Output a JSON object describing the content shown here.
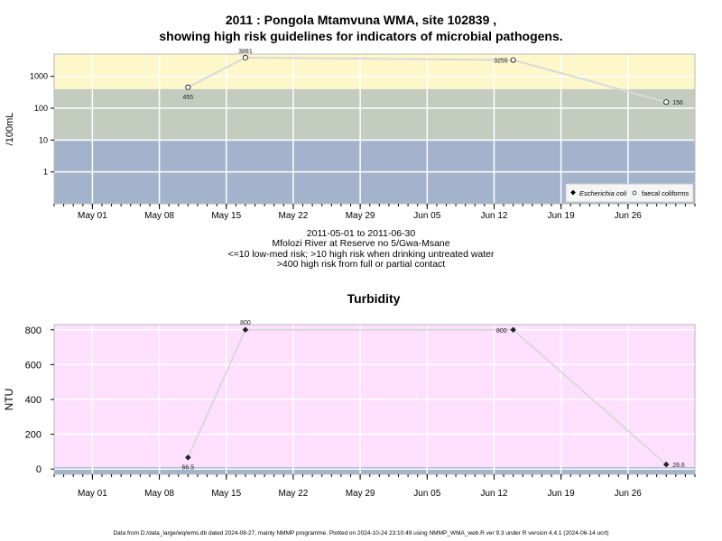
{
  "header": {
    "title_line1": "2011 : Pongola Mtamvuna WMA, site 102839 ,",
    "title_line2": "showing high risk guidelines for indicators of microbial pathogens."
  },
  "subtitle": {
    "line1": "2011-05-01 to 2011-06-30",
    "line2": "Mfolozi River at Reserve no 5/Gwa-Msane",
    "line3": "<=10 low-med risk; >10 high risk when drinking untreated water",
    "line4": ">400 high risk from full or partial contact"
  },
  "footer": {
    "text": "Data from D:/data_large/wq/wms.db dated 2024-08-27, mainly NMMP programme. Plotted on 2024-10-24 23:10:49 using NMMP_WMA_web.R ver 9.3 under R version 4.4.1 (2024-06-14 ucrt)"
  },
  "colors": {
    "band_low": "#a3b3cc",
    "band_med": "#c4ccc0",
    "band_high": "#fdf7ca",
    "turbidity_bg": "#fee0fe",
    "turbidity_base": "#a3b3cc",
    "line": "#d9d9d9",
    "grid": "#ffffff"
  },
  "chart_data": [
    {
      "type": "scatter",
      "title": "",
      "ylabel": "/100mL",
      "y_scale": "log10",
      "ylim": [
        0.1,
        5000
      ],
      "xlim": [
        "2011-04-27",
        "2011-07-03"
      ],
      "y_ticks": [
        1,
        10,
        100,
        1000
      ],
      "y_tick_labels": [
        "1",
        "10",
        "100",
        "1000"
      ],
      "x_ticks": [
        "2011-05-01",
        "2011-05-08",
        "2011-05-15",
        "2011-05-22",
        "2011-05-29",
        "2011-06-05",
        "2011-06-12",
        "2011-06-19",
        "2011-06-26"
      ],
      "x_tick_labels": [
        "May 01",
        "May 08",
        "May 15",
        "May 22",
        "May 29",
        "Jun 05",
        "Jun 12",
        "Jun 19",
        "Jun 26"
      ],
      "risk_bands": [
        {
          "from": 0.1,
          "to": 10,
          "level": "low-med"
        },
        {
          "from": 10,
          "to": 400,
          "level": "high"
        },
        {
          "from": 400,
          "to": 5000,
          "level": "high contact"
        }
      ],
      "grid": true,
      "legend_position": "bottom-right",
      "legend": [
        "Escherichia coli",
        "faecal coliforms"
      ],
      "series": [
        {
          "name": "faecal coliforms",
          "marker": "open-circle",
          "x": [
            "2011-05-11",
            "2011-05-17",
            "2011-06-14",
            "2011-06-30"
          ],
          "y": [
            455,
            3881,
            3255,
            156
          ],
          "labels": [
            "455",
            "3881",
            "3255",
            "156"
          ]
        }
      ]
    },
    {
      "type": "scatter",
      "title": "Turbidity",
      "ylabel": "NTU",
      "ylim": [
        -30,
        830
      ],
      "xlim": [
        "2011-04-27",
        "2011-07-03"
      ],
      "y_ticks": [
        0,
        200,
        400,
        600,
        800
      ],
      "y_tick_labels": [
        "0",
        "200",
        "400",
        "600",
        "800"
      ],
      "x_ticks": [
        "2011-05-01",
        "2011-05-08",
        "2011-05-15",
        "2011-05-22",
        "2011-05-29",
        "2011-06-05",
        "2011-06-12",
        "2011-06-19",
        "2011-06-26"
      ],
      "x_tick_labels": [
        "May 01",
        "May 08",
        "May 15",
        "May 22",
        "May 29",
        "Jun 05",
        "Jun 12",
        "Jun 19",
        "Jun 26"
      ],
      "grid": true,
      "series": [
        {
          "marker": "filled-diamond",
          "x": [
            "2011-05-11",
            "2011-05-17",
            "2011-06-14",
            "2011-06-30"
          ],
          "y": [
            66.5,
            800,
            800,
            26.6
          ],
          "labels": [
            "66.5",
            "800",
            "800",
            "26.6"
          ]
        }
      ]
    }
  ]
}
